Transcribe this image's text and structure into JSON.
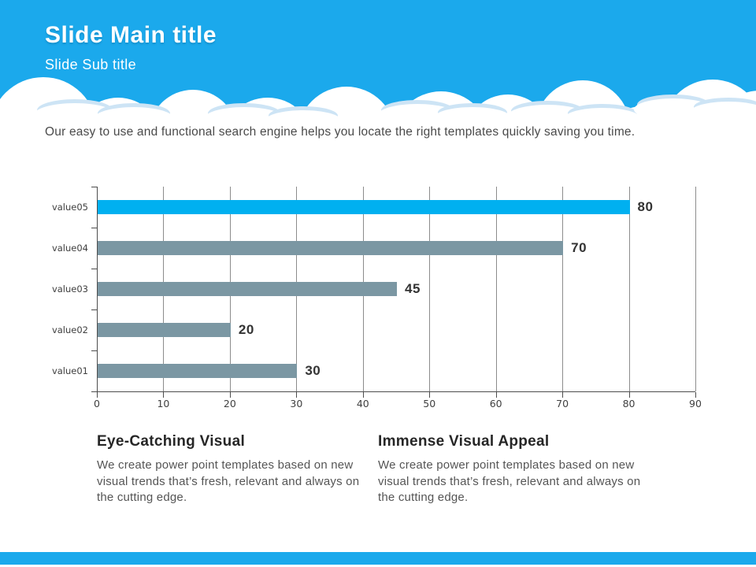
{
  "slide": {
    "title": "Slide Main title",
    "subtitle": "Slide Sub title",
    "intro": "Our easy to use and functional search engine helps you locate the right templates quickly saving you time.",
    "colors": {
      "header_blue": "#1BA9EC",
      "cloud_accent": "#CDE4F5",
      "footer_blue": "#1BA9EC",
      "bar_highlight": "#00B0F0",
      "bar_default": "#7B97A3",
      "axis": "#4d4d4d",
      "grid": "#8c8c8c"
    }
  },
  "chart_data": {
    "type": "bar",
    "orientation": "horizontal",
    "title": "",
    "xlabel": "",
    "ylabel": "",
    "categories": [
      "value01",
      "value02",
      "value03",
      "value04",
      "value05"
    ],
    "values": [
      30,
      20,
      45,
      70,
      80
    ],
    "bar_colors": [
      "#7B97A3",
      "#7B97A3",
      "#7B97A3",
      "#7B97A3",
      "#00B0F0"
    ],
    "data_labels": [
      "30",
      "20",
      "45",
      "70",
      "80"
    ],
    "xlim": [
      0,
      90
    ],
    "xticks": [
      0,
      10,
      20,
      30,
      40,
      50,
      60,
      70,
      80,
      90
    ],
    "grid": true,
    "legend": false
  },
  "sections": [
    {
      "heading": "Eye-Catching Visual",
      "body": "We create power point templates based on new visual trends that’s fresh, relevant and always on the cutting edge."
    },
    {
      "heading": "Immense Visual Appeal",
      "body": "We create power point templates based on new visual trends that’s fresh, relevant and always on the cutting edge."
    }
  ]
}
